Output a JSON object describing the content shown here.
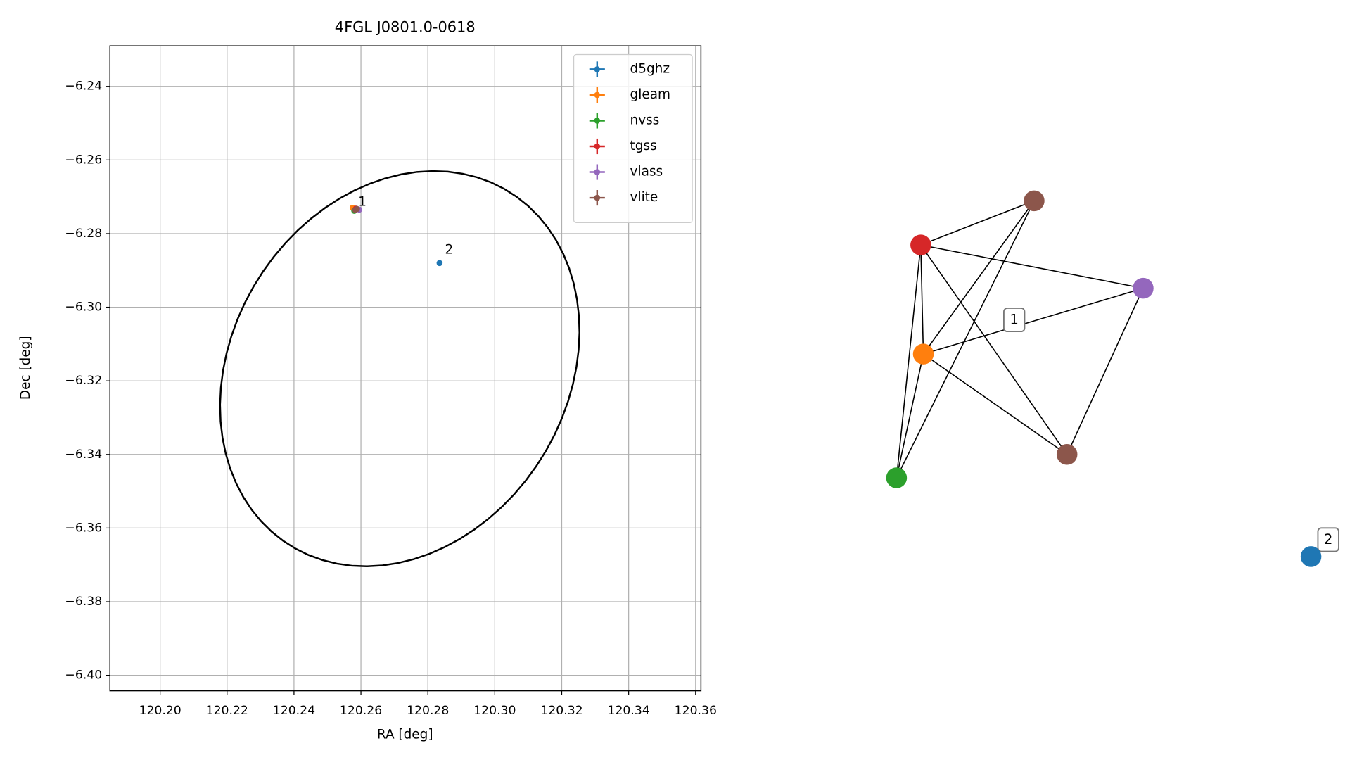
{
  "chart_data": [
    {
      "type": "scatter",
      "title": "4FGL J0801.0-0618",
      "xlabel": "RA [deg]",
      "ylabel": "Dec [deg]",
      "xlim": [
        120.185,
        120.3616
      ],
      "ylim": [
        -6.4042,
        -6.229
      ],
      "xticks": [
        {
          "value": 120.2,
          "label": "120.20"
        },
        {
          "value": 120.22,
          "label": "120.22"
        },
        {
          "value": 120.24,
          "label": "120.24"
        },
        {
          "value": 120.26,
          "label": "120.26"
        },
        {
          "value": 120.28,
          "label": "120.28"
        },
        {
          "value": 120.3,
          "label": "120.30"
        },
        {
          "value": 120.32,
          "label": "120.32"
        },
        {
          "value": 120.34,
          "label": "120.34"
        },
        {
          "value": 120.36,
          "label": "120.36"
        }
      ],
      "yticks": [
        {
          "value": -6.24,
          "label": "−6.24"
        },
        {
          "value": -6.26,
          "label": "−6.26"
        },
        {
          "value": -6.28,
          "label": "−6.28"
        },
        {
          "value": -6.3,
          "label": "−6.30"
        },
        {
          "value": -6.32,
          "label": "−6.32"
        },
        {
          "value": -6.34,
          "label": "−6.34"
        },
        {
          "value": -6.36,
          "label": "−6.36"
        },
        {
          "value": -6.38,
          "label": "−6.38"
        },
        {
          "value": -6.4,
          "label": "−6.40"
        }
      ],
      "grid": true,
      "legend": "upper right",
      "series": [
        {
          "name": "d5ghz",
          "color": "#1f77b4",
          "x": [
            120.2835
          ],
          "values": [
            -6.288
          ]
        },
        {
          "name": "gleam",
          "color": "#ff7f0e",
          "x": [
            120.2575
          ],
          "values": [
            -6.273
          ]
        },
        {
          "name": "nvss",
          "color": "#2ca02c",
          "x": [
            120.258
          ],
          "values": [
            -6.2738
          ]
        },
        {
          "name": "tgss",
          "color": "#d62728",
          "x": [
            120.2585
          ],
          "values": [
            -6.2732
          ]
        },
        {
          "name": "vlass",
          "color": "#9467bd",
          "x": [
            120.2595
          ],
          "values": [
            -6.2735
          ]
        },
        {
          "name": "vlite",
          "color": "#8c564b",
          "x": [
            120.2588,
            120.2583
          ],
          "values": [
            -6.2733,
            -6.2736
          ]
        }
      ],
      "ellipse": {
        "x0": 120.2716,
        "y0": -6.3167,
        "a": 0.0586,
        "b": 0.0483,
        "angle": 45,
        "color": "#000000"
      },
      "annotations": [
        {
          "text": "1",
          "x": 120.2592,
          "y": -6.2715
        },
        {
          "text": "2",
          "x": 120.2851,
          "y": -6.2845
        }
      ]
    },
    {
      "type": "network",
      "nodes": [
        {
          "color": "#d62728"
        },
        {
          "color": "#8c564b"
        },
        {
          "color": "#9467bd"
        },
        {
          "color": "#ff7f0e"
        },
        {
          "color": "#2ca02c"
        },
        {
          "color": "#8c564b"
        },
        {
          "color": "#1f77b4"
        }
      ],
      "edges": [
        [
          0,
          1
        ],
        [
          0,
          2
        ],
        [
          0,
          3
        ],
        [
          0,
          4
        ],
        [
          0,
          5
        ],
        [
          1,
          3
        ],
        [
          1,
          4
        ],
        [
          2,
          3
        ],
        [
          2,
          5
        ],
        [
          3,
          4
        ],
        [
          3,
          5
        ]
      ],
      "labels": [
        "1",
        "2"
      ]
    }
  ]
}
